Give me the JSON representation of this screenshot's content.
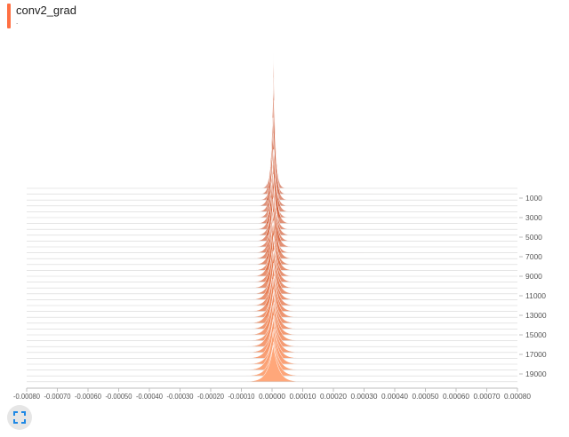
{
  "card": {
    "title": "conv2_grad",
    "subtitle": ".",
    "accent_color": "#ff7043"
  },
  "toolbar": {
    "expand_icon": "fullscreen-icon",
    "icon_color": "#1e88e5"
  },
  "colors": {
    "series_light": "#ffa77a",
    "series_dark": "#c43d15",
    "axis": "#bdbdbd",
    "tick_text": "#555555"
  },
  "chart_data": {
    "type": "histogram-offset",
    "title": "conv2_grad",
    "xlabel": "",
    "ylabel": "",
    "x_range": [
      -0.0008,
      0.0008
    ],
    "x_ticks": [
      "-0.00080",
      "-0.00070",
      "-0.00060",
      "-0.00050",
      "-0.00040",
      "-0.00030",
      "-0.00020",
      "-0.00010",
      "0.00000",
      "0.00010",
      "0.00020",
      "0.00030",
      "0.00040",
      "0.00050",
      "0.00060",
      "0.00070",
      "0.00080"
    ],
    "step_range": [
      0,
      20000
    ],
    "step_ticks": [
      "1000",
      "3000",
      "5000",
      "7000",
      "9000",
      "11000",
      "13000",
      "15000",
      "17000",
      "19000"
    ],
    "step_tick_values": [
      1000,
      3000,
      5000,
      7000,
      9000,
      11000,
      13000,
      15000,
      17000,
      19000
    ],
    "series": [
      {
        "step": 0,
        "mean": 5e-06,
        "spread": 1e-05,
        "peak": 0.95
      },
      {
        "step": 600,
        "mean": 4e-06,
        "spread": 1.1e-05,
        "peak": 0.82
      },
      {
        "step": 1200,
        "mean": 6e-06,
        "spread": 1.2e-05,
        "peak": 0.7
      },
      {
        "step": 1800,
        "mean": 3e-06,
        "spread": 1.3e-05,
        "peak": 0.62
      },
      {
        "step": 2400,
        "mean": 5e-06,
        "spread": 1.4e-05,
        "peak": 0.55
      },
      {
        "step": 3000,
        "mean": 4e-06,
        "spread": 1.4e-05,
        "peak": 0.48
      },
      {
        "step": 3600,
        "mean": 6e-06,
        "spread": 1.5e-05,
        "peak": 0.52
      },
      {
        "step": 4200,
        "mean": 3e-06,
        "spread": 1.5e-05,
        "peak": 0.46
      },
      {
        "step": 4800,
        "mean": 5e-06,
        "spread": 1.6e-05,
        "peak": 0.42
      },
      {
        "step": 5400,
        "mean": 4e-06,
        "spread": 1.6e-05,
        "peak": 0.47
      },
      {
        "step": 6000,
        "mean": 6e-06,
        "spread": 1.7e-05,
        "peak": 0.41
      },
      {
        "step": 6600,
        "mean": 3e-06,
        "spread": 1.7e-05,
        "peak": 0.38
      },
      {
        "step": 7200,
        "mean": 5e-06,
        "spread": 1.8e-05,
        "peak": 0.43
      },
      {
        "step": 7800,
        "mean": 4e-06,
        "spread": 1.8e-05,
        "peak": 0.37
      },
      {
        "step": 8400,
        "mean": 6e-06,
        "spread": 1.9e-05,
        "peak": 0.35
      },
      {
        "step": 9000,
        "mean": 3e-06,
        "spread": 1.9e-05,
        "peak": 0.39
      },
      {
        "step": 9600,
        "mean": 5e-06,
        "spread": 2e-05,
        "peak": 0.33
      },
      {
        "step": 10200,
        "mean": 4e-06,
        "spread": 2e-05,
        "peak": 0.36
      },
      {
        "step": 10800,
        "mean": 6e-06,
        "spread": 2.1e-05,
        "peak": 0.31
      },
      {
        "step": 11400,
        "mean": 3e-06,
        "spread": 2.1e-05,
        "peak": 0.34
      },
      {
        "step": 12000,
        "mean": 5e-06,
        "spread": 2.2e-05,
        "peak": 0.3
      },
      {
        "step": 12600,
        "mean": 4e-06,
        "spread": 2.2e-05,
        "peak": 0.32
      },
      {
        "step": 13200,
        "mean": 6e-06,
        "spread": 2.3e-05,
        "peak": 0.29
      },
      {
        "step": 13800,
        "mean": 3e-06,
        "spread": 2.3e-05,
        "peak": 0.31
      },
      {
        "step": 14400,
        "mean": 5e-06,
        "spread": 2.4e-05,
        "peak": 0.28
      },
      {
        "step": 15000,
        "mean": 4e-06,
        "spread": 2.4e-05,
        "peak": 0.3
      },
      {
        "step": 15600,
        "mean": 6e-06,
        "spread": 2.5e-05,
        "peak": 0.27
      },
      {
        "step": 16200,
        "mean": 3e-06,
        "spread": 2.5e-05,
        "peak": 0.29
      },
      {
        "step": 16800,
        "mean": 5e-06,
        "spread": 2.6e-05,
        "peak": 0.26
      },
      {
        "step": 17400,
        "mean": 4e-06,
        "spread": 2.6e-05,
        "peak": 0.28
      },
      {
        "step": 18000,
        "mean": 6e-06,
        "spread": 2.7e-05,
        "peak": 0.25
      },
      {
        "step": 18600,
        "mean": 3e-06,
        "spread": 2.7e-05,
        "peak": 0.27
      },
      {
        "step": 19200,
        "mean": 5e-06,
        "spread": 2.8e-05,
        "peak": 0.24
      },
      {
        "step": 19800,
        "mean": 4e-06,
        "spread": 2.8e-05,
        "peak": 0.26
      }
    ]
  }
}
